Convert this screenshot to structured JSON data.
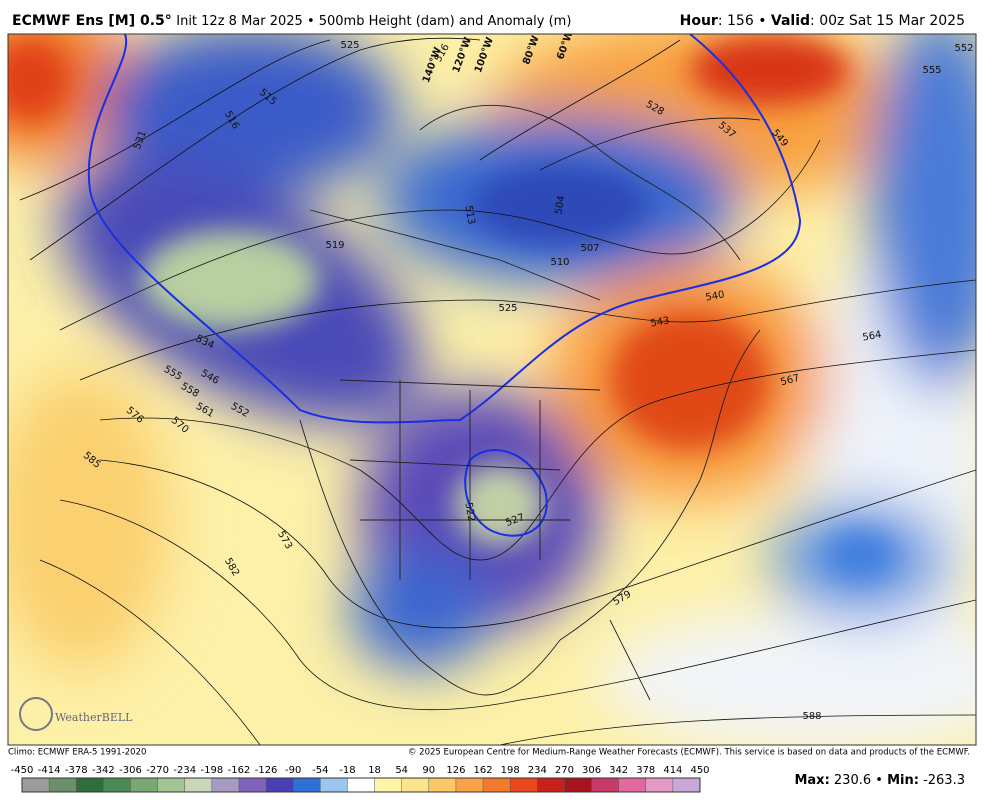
{
  "header": {
    "model": "ECMWF Ens [M] 0.5°",
    "description": "Init 12z 8 Mar 2025 • 500mb Height (dam) and Anomaly (m)",
    "hour_label": "Hour",
    "hour": "156",
    "separator": "•",
    "valid_label": "Valid",
    "valid": "00z Sat 15 Mar 2025"
  },
  "map": {
    "contour_labels": [
      525,
      515,
      516,
      531,
      519,
      534,
      546,
      555,
      558,
      561,
      552,
      576,
      570,
      585,
      573,
      582,
      513,
      504,
      507,
      510,
      525,
      528,
      537,
      549,
      555,
      552,
      540,
      543,
      564,
      567,
      522,
      527,
      579,
      588,
      516
    ],
    "longitude_labels": [
      "140°W",
      "120°W",
      "100°W",
      "80°W",
      "60°W"
    ],
    "logo": "WeatherBELL"
  },
  "footer": {
    "climo": "Climo: ECMWF ERA-5 1991-2020",
    "copyright": "© 2025 European Centre for Medium-Range Weather Forecasts (ECMWF). This service is based on data and products of the ECMWF."
  },
  "colorbar": {
    "ticks": [
      -450,
      -414,
      -378,
      -342,
      -306,
      -270,
      -234,
      -198,
      -162,
      -126,
      -90,
      -54,
      -18,
      18,
      54,
      90,
      126,
      162,
      198,
      234,
      270,
      306,
      342,
      378,
      414,
      450
    ],
    "colors": [
      "#9c9c9c",
      "#6b8f6b",
      "#2f6e3c",
      "#4d8a55",
      "#7aa874",
      "#a5c495",
      "#c9d6b8",
      "#a79bc4",
      "#7f63b8",
      "#4b3fb5",
      "#2f6fd6",
      "#9cc6ef",
      "#ffffff",
      "#fff5a8",
      "#fde58a",
      "#fcc66a",
      "#f9a24a",
      "#f27a2c",
      "#e8481c",
      "#c8201a",
      "#a8141e",
      "#c83a6a",
      "#e06aa0",
      "#e49ac4",
      "#c8a8d8"
    ]
  },
  "stats": {
    "max_label": "Max:",
    "max": 230.6,
    "separator": "•",
    "min_label": "Min:",
    "min": -263.3
  }
}
